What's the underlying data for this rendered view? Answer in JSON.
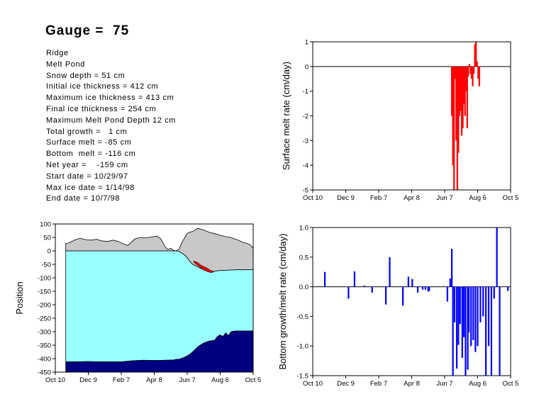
{
  "title": "Gauge =  75",
  "info_lines": [
    "Ridge",
    "Melt Pond",
    "Snow depth = 51 cm",
    "Initial ice thickness = 412 cm",
    "Maximum ice thickness = 413 cm",
    "Final ice thickness = 254 cm",
    "Maximum Melt Pond Depth 12 cm",
    "Total growth =   1 cm",
    "Surface melt = -85 cm",
    "Bottom  melt = -116 cm",
    "Net year =    -159 cm",
    "Start date = 10/29/97",
    "Max ice date = 1/14/98",
    "End date = 10/7/98"
  ],
  "chart_data": [
    {
      "type": "area",
      "ylabel": "Position",
      "xlabel": "",
      "x_tick_labels": [
        "Oct 10",
        "Dec 9",
        "Feb 7",
        "Apr 8",
        "Jun 7",
        "Aug 6",
        "Oct 5"
      ],
      "y_ticks": [
        100,
        50,
        0,
        -50,
        -100,
        -150,
        -200,
        -250,
        -300,
        -350,
        -400,
        -450
      ],
      "xlim": [
        0,
        360
      ],
      "ylim": [
        -450,
        100
      ],
      "colors": {
        "snow": "#c8c8c8",
        "ice": "#99ffff",
        "bottom": "#000080",
        "melt": "#ff0000"
      },
      "snow_top": {
        "x": [
          19,
          25,
          35,
          45,
          55,
          65,
          75,
          85,
          95,
          105,
          115,
          125,
          132,
          145,
          155,
          165,
          175,
          185,
          192,
          196,
          200,
          205,
          210,
          215,
          220,
          225,
          230,
          235,
          240,
          245,
          250,
          255,
          260,
          270,
          280,
          290,
          300,
          310,
          320,
          325,
          330,
          335,
          340,
          345,
          350,
          355,
          360
        ],
        "y": [
          27,
          30,
          40,
          47,
          42,
          40,
          43,
          37,
          35,
          40,
          35,
          25,
          20,
          45,
          50,
          48,
          52,
          55,
          45,
          30,
          15,
          5,
          10,
          2,
          0,
          6,
          30,
          48,
          65,
          70,
          72,
          80,
          83,
          78,
          69,
          64,
          58,
          53,
          50,
          45,
          42,
          38,
          33,
          30,
          27,
          22,
          10
        ]
      },
      "ice_top": {
        "x": [
          19,
          220,
          225,
          230,
          235,
          240,
          245,
          250,
          255,
          260,
          265,
          270,
          275,
          280,
          285,
          290,
          300,
          310,
          320,
          330,
          340,
          350,
          360
        ],
        "y": [
          0,
          0,
          -2,
          -8,
          -15,
          -25,
          -40,
          -50,
          -55,
          -60,
          -65,
          -70,
          -75,
          -78,
          -80,
          -75,
          -73,
          -72,
          -71,
          -70,
          -70,
          -70,
          -70
        ]
      },
      "ice_bottom": {
        "x": [
          19,
          40,
          60,
          80,
          100,
          120,
          140,
          160,
          180,
          200,
          215,
          220,
          225,
          230,
          235,
          240,
          245,
          250,
          255,
          260,
          270,
          280,
          290,
          295,
          300,
          305,
          310,
          315,
          320,
          325,
          330,
          335,
          340,
          345,
          350,
          355,
          360
        ],
        "y": [
          -412,
          -412,
          -411,
          -412,
          -412,
          -412,
          -408,
          -406,
          -407,
          -406,
          -405,
          -403,
          -402,
          -399,
          -395,
          -390,
          -383,
          -375,
          -365,
          -355,
          -342,
          -335,
          -332,
          -318,
          -312,
          -318,
          -305,
          -315,
          -300,
          -298,
          -297,
          -297,
          -297,
          -297,
          -297,
          -297,
          -297
        ]
      },
      "melt_pond": {
        "x": [
          252,
          258,
          264,
          270,
          276,
          282,
          287
        ],
        "y_top": [
          -38,
          -42,
          -52,
          -58,
          -64,
          -72,
          -75
        ],
        "y_bottom": [
          -42,
          -52,
          -62,
          -70,
          -76,
          -80,
          -78
        ]
      }
    },
    {
      "type": "bar",
      "ylabel": "Surface melt rate (cm/day)",
      "xlabel": "",
      "color": "#ff0000",
      "x_tick_labels": [
        "Oct 10",
        "Dec 9",
        "Feb 7",
        "Apr 8",
        "Jun 7",
        "Aug 6",
        "Oct 5"
      ],
      "y_ticks": [
        1,
        0,
        -1,
        -2,
        -3,
        -4,
        -5
      ],
      "xlim": [
        0,
        360
      ],
      "ylim": [
        -5,
        1
      ],
      "x": [
        253,
        255,
        257,
        259,
        261,
        263,
        265,
        267,
        269,
        271,
        273,
        275,
        277,
        279,
        281,
        283,
        285,
        287,
        289,
        291,
        293,
        295,
        297,
        299,
        301,
        303
      ],
      "values": [
        -2.0,
        -4.0,
        -5.0,
        -0.5,
        -3.0,
        -5.0,
        -3.5,
        -2.0,
        -1.8,
        -2.8,
        -2.5,
        -1.5,
        -2.0,
        -1.0,
        -2.5,
        -0.4,
        0.1,
        -0.3,
        -0.5,
        -0.8,
        -0.3,
        0.9,
        1.0,
        0.2,
        -0.5,
        -0.8
      ]
    },
    {
      "type": "bar",
      "ylabel": "Bottom growth/melt rate (cm/day)",
      "xlabel": "",
      "color": "#0000ff",
      "x_tick_labels": [
        "Oct 10",
        "Dec 9",
        "Feb 7",
        "Apr 8",
        "Jun 7",
        "Aug 6",
        "Oct 5"
      ],
      "y_ticks": [
        1.0,
        0.5,
        0.0,
        -0.5,
        -1.0,
        -1.5
      ],
      "xlim": [
        0,
        360
      ],
      "ylim": [
        -1.5,
        1.0
      ],
      "x": [
        22,
        65,
        76,
        94,
        108,
        133,
        140,
        164,
        174,
        181,
        191,
        200,
        205,
        210,
        212,
        245,
        250,
        253,
        255,
        258,
        262,
        265,
        268,
        272,
        275,
        278,
        282,
        284,
        288,
        292,
        296,
        300,
        305,
        310,
        315,
        320,
        325,
        330,
        335,
        340,
        355
      ],
      "values": [
        0.25,
        -0.2,
        0.26,
        0.02,
        -0.1,
        -0.3,
        0.5,
        -0.32,
        0.17,
        0.13,
        -0.1,
        -0.05,
        -0.05,
        -0.08,
        -0.07,
        -0.25,
        0.14,
        0.64,
        -1.5,
        -0.6,
        -1.38,
        -0.98,
        -0.63,
        -1.2,
        -0.85,
        -1.5,
        -1.4,
        -0.77,
        -1.0,
        -0.9,
        -1.1,
        -1.0,
        -0.6,
        -0.5,
        -1.5,
        -1.0,
        -1.5,
        -0.2,
        1.0,
        -1.5,
        -0.07
      ]
    }
  ]
}
